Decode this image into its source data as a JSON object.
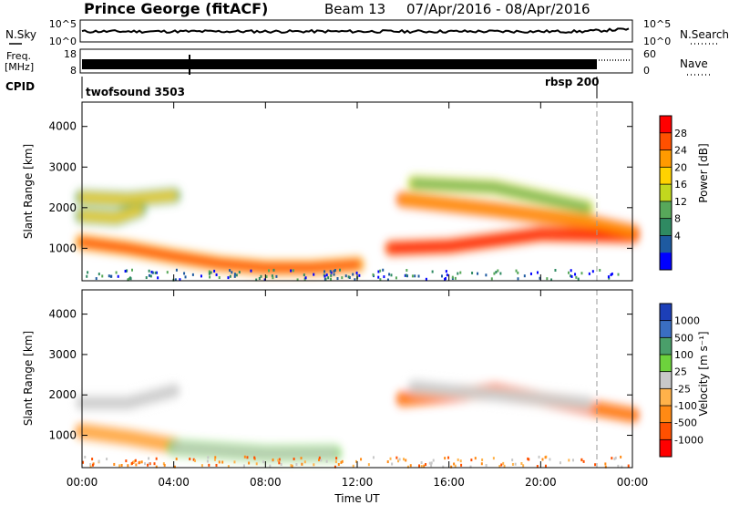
{
  "header": {
    "station": "Prince George (fitACF)",
    "beam": "Beam 13",
    "date_range": "07/Apr/2016 - 08/Apr/2016"
  },
  "strips": {
    "nsky": {
      "left_label": "N.Sky",
      "left_ticks": [
        "10^5",
        "10^0"
      ],
      "right_ticks": [
        "10^5",
        "10^0"
      ],
      "right_label": "N.Search"
    },
    "freq": {
      "left_label_1": "Freq.",
      "left_label_2": "[MHz]",
      "left_ticks": [
        "18",
        "8"
      ],
      "right_ticks": [
        "60",
        "0"
      ],
      "right_label": "Nave"
    },
    "cpid": {
      "label": "CPID",
      "programs": [
        "twofsound 3503",
        "rbsp 200"
      ]
    }
  },
  "chart_data": [
    {
      "type": "heatmap",
      "panel": "power",
      "ylabel": "Slant Range [km]",
      "xlabel": "",
      "yticks": [
        "1000",
        "2000",
        "3000",
        "4000"
      ],
      "ylim": [
        200,
        4600
      ],
      "xlim_hours": [
        0,
        24
      ],
      "xticks": [
        "00:00",
        "04:00",
        "08:00",
        "12:00",
        "16:00",
        "20:00",
        "00:00"
      ],
      "colorbar": {
        "label": "Power [dB]",
        "ticks": [
          "28",
          "24",
          "20",
          "16",
          "12",
          "8",
          "4"
        ],
        "colors": [
          "#ff0000",
          "#ff5000",
          "#ff9a00",
          "#ffd200",
          "#c2d81e",
          "#57a85a",
          "#2f8a62",
          "#1e5aa0",
          "#0000ff"
        ]
      },
      "bands": [
        {
          "x": [
            0,
            2,
            4,
            6,
            8,
            10,
            12
          ],
          "y": [
            1150,
            1000,
            800,
            620,
            520,
            520,
            600
          ],
          "level": "red-orange"
        },
        {
          "x": [
            0,
            1.5,
            2.5
          ],
          "y": [
            1800,
            1750,
            1950
          ],
          "level": "yellow-green"
        },
        {
          "x": [
            0,
            2,
            4
          ],
          "y": [
            2250,
            2200,
            2300
          ],
          "level": "yellow-green"
        },
        {
          "x": [
            13.5,
            16,
            20,
            24
          ],
          "y": [
            1000,
            1050,
            1350,
            1300
          ],
          "level": "red"
        },
        {
          "x": [
            14,
            18,
            22,
            24
          ],
          "y": [
            2200,
            1950,
            1650,
            1400
          ],
          "level": "orange"
        },
        {
          "x": [
            14.5,
            18,
            22
          ],
          "y": [
            2600,
            2500,
            2000
          ],
          "level": "green"
        }
      ]
    },
    {
      "type": "heatmap",
      "panel": "velocity",
      "ylabel": "Slant Range [km]",
      "xlabel": "Time UT",
      "yticks": [
        "1000",
        "2000",
        "3000",
        "4000"
      ],
      "ylim": [
        200,
        4600
      ],
      "xlim_hours": [
        0,
        24
      ],
      "xticks": [
        "00:00",
        "04:00",
        "08:00",
        "12:00",
        "16:00",
        "20:00",
        "00:00"
      ],
      "colorbar": {
        "label": "Velocity [m s⁻¹]",
        "ticks": [
          "1000",
          "500",
          "100",
          "25",
          "-25",
          "-100",
          "-500",
          "-1000"
        ],
        "colors": [
          "#1c3fb8",
          "#3a6ec2",
          "#4a9f6a",
          "#6dd23c",
          "#c8c8c8",
          "#ffb24a",
          "#ff8a14",
          "#ff5000",
          "#ff0000"
        ]
      },
      "bands": [
        {
          "x": [
            0,
            2,
            4
          ],
          "y": [
            1100,
            950,
            750
          ],
          "level": "orange"
        },
        {
          "x": [
            4,
            8,
            11
          ],
          "y": [
            700,
            550,
            560
          ],
          "level": "gray-green"
        },
        {
          "x": [
            0,
            2,
            4
          ],
          "y": [
            1800,
            1800,
            2100
          ],
          "level": "gray"
        },
        {
          "x": [
            14,
            18,
            22,
            24
          ],
          "y": [
            1900,
            2100,
            1700,
            1500
          ],
          "level": "orange-red"
        },
        {
          "x": [
            14.5,
            18,
            22
          ],
          "y": [
            2200,
            2000,
            1800
          ],
          "level": "gray"
        }
      ]
    }
  ]
}
